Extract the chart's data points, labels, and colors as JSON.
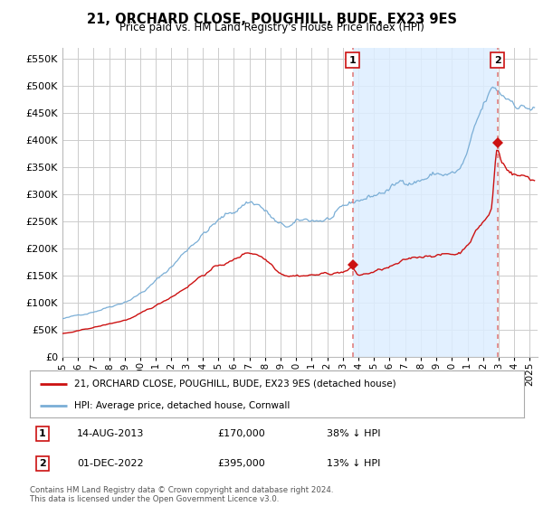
{
  "title": "21, ORCHARD CLOSE, POUGHILL, BUDE, EX23 9ES",
  "subtitle": "Price paid vs. HM Land Registry's House Price Index (HPI)",
  "ytick_vals": [
    0,
    50000,
    100000,
    150000,
    200000,
    250000,
    300000,
    350000,
    400000,
    450000,
    500000,
    550000
  ],
  "ylim": [
    0,
    570000
  ],
  "xlim_start": 1995.0,
  "xlim_end": 2025.5,
  "sale1_x": 2013.62,
  "sale1_y": 170000,
  "sale1_label": "1",
  "sale2_x": 2022.92,
  "sale2_y": 395000,
  "sale2_label": "2",
  "hpi_color": "#7aaed6",
  "hpi_fill_color": "#ddeeff",
  "price_color": "#cc1111",
  "vline_color": "#e08080",
  "grid_color": "#cccccc",
  "background_color": "#ffffff",
  "legend_house": "21, ORCHARD CLOSE, POUGHILL, BUDE, EX23 9ES (detached house)",
  "legend_hpi": "HPI: Average price, detached house, Cornwall",
  "table_row1": [
    "1",
    "14-AUG-2013",
    "£170,000",
    "38% ↓ HPI"
  ],
  "table_row2": [
    "2",
    "01-DEC-2022",
    "£395,000",
    "13% ↓ HPI"
  ],
  "footnote": "Contains HM Land Registry data © Crown copyright and database right 2024.\nThis data is licensed under the Open Government Licence v3.0."
}
